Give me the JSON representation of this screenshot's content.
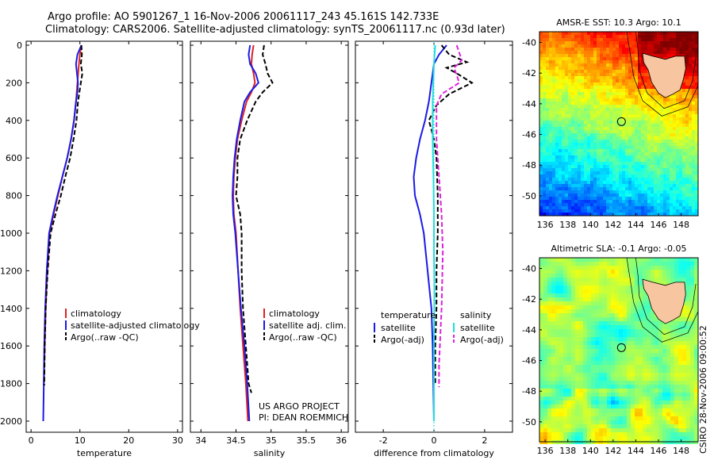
{
  "figure": {
    "title_line1": "Argo profile: AO 5901267_1 16-Nov-2006 20061117_243 45.161S 142.733E",
    "title_line2": "Climatology: CARS2006. Satellite-adjusted climatology: synTS_20061117.nc (0.93d later)",
    "credit_line1": "US ARGO PROJECT",
    "credit_line2": "PI: DEAN ROEMMICH",
    "timestamp": "CSIRO 28-Nov-2006 09:00:52"
  },
  "colors": {
    "climatology": "#dd2222",
    "satellite": "#1a1ae6",
    "argo": "#000000",
    "satellite_salinity": "#22dddd",
    "argo_adj_salinity": "#dd22dd",
    "land": "#f7c6a0"
  },
  "chart_data": [
    {
      "type": "line",
      "name": "temperature-profile",
      "xlabel": "temperature",
      "ylabel": "",
      "xlim": [
        -1,
        31
      ],
      "ylim": [
        2050,
        0
      ],
      "xticks": [
        "0",
        "10",
        "20",
        "30"
      ],
      "yticks": [
        "0",
        "200",
        "400",
        "600",
        "800",
        "1000",
        "1200",
        "1400",
        "1600",
        "1800",
        "2000"
      ],
      "legend": [
        "climatology",
        "satellite-adjusted climatology",
        "Argo(..raw -QC)"
      ],
      "series": [
        {
          "name": "climatology",
          "color_key": "climatology",
          "dash": false,
          "x": [
            10.3,
            10.0,
            9.8,
            9.5,
            9.2,
            8.8,
            8.2,
            7.4,
            6.4,
            5.5,
            4.6,
            3.8,
            3.3,
            3.0,
            2.8,
            2.7,
            2.6
          ],
          "y": [
            0,
            50,
            100,
            200,
            300,
            400,
            500,
            600,
            700,
            800,
            900,
            1000,
            1200,
            1400,
            1600,
            1700,
            1810
          ]
        },
        {
          "name": "satellite-adjusted climatology",
          "color_key": "satellite",
          "dash": false,
          "x": [
            10.3,
            9.5,
            9.2,
            9.4,
            9.6,
            9.5,
            9.2,
            8.8,
            8.2,
            7.4,
            6.4,
            5.4,
            4.5,
            3.7,
            3.2,
            2.9,
            2.7,
            2.6,
            2.5
          ],
          "y": [
            0,
            50,
            100,
            150,
            200,
            250,
            300,
            400,
            500,
            600,
            700,
            800,
            900,
            1000,
            1200,
            1400,
            1600,
            1800,
            2000
          ]
        },
        {
          "name": "Argo(..raw -QC)",
          "color_key": "argo",
          "dash": true,
          "x": [
            10.3,
            10.4,
            10.2,
            10.5,
            10.2,
            9.9,
            9.6,
            9.3,
            8.7,
            8.0,
            7.0,
            6.1,
            5.0,
            4.0,
            3.4,
            3.0,
            2.8,
            2.7
          ],
          "y": [
            0,
            50,
            100,
            150,
            200,
            250,
            300,
            400,
            500,
            600,
            700,
            800,
            900,
            1000,
            1200,
            1400,
            1600,
            1810
          ]
        }
      ]
    },
    {
      "type": "line",
      "name": "salinity-profile",
      "xlabel": "salinity",
      "ylabel": "",
      "xlim": [
        33.85,
        36.1
      ],
      "ylim": [
        2050,
        0
      ],
      "xticks": [
        "34",
        "34.5",
        "35",
        "35.5",
        "36"
      ],
      "legend": [
        "climatology",
        "satellite adj. clim.",
        "Argo(..raw -QC)"
      ],
      "series": [
        {
          "name": "climatology",
          "color_key": "climatology",
          "dash": false,
          "x": [
            34.75,
            34.73,
            34.72,
            34.75,
            34.77,
            34.72,
            34.65,
            34.58,
            34.52,
            34.49,
            34.47,
            34.46,
            34.47,
            34.5,
            34.53,
            34.56,
            34.6,
            34.64,
            34.67
          ],
          "y": [
            0,
            50,
            100,
            150,
            200,
            250,
            300,
            400,
            500,
            600,
            700,
            800,
            900,
            1000,
            1200,
            1400,
            1600,
            1800,
            2000
          ]
        },
        {
          "name": "satellite adj. clim.",
          "color_key": "satellite",
          "dash": false,
          "x": [
            34.7,
            34.68,
            34.7,
            34.78,
            34.82,
            34.7,
            34.62,
            34.56,
            34.51,
            34.48,
            34.46,
            34.45,
            34.46,
            34.49,
            34.53,
            34.57,
            34.62,
            34.66,
            34.69
          ],
          "y": [
            0,
            50,
            100,
            150,
            200,
            250,
            300,
            400,
            500,
            600,
            700,
            800,
            900,
            1000,
            1200,
            1400,
            1600,
            1800,
            2000
          ]
        },
        {
          "name": "Argo(..raw -QC)",
          "color_key": "argo",
          "dash": true,
          "x": [
            34.9,
            34.88,
            34.92,
            34.95,
            35.02,
            34.88,
            34.78,
            34.66,
            34.56,
            34.52,
            34.52,
            34.5,
            34.56,
            34.58,
            34.58,
            34.6,
            34.64,
            34.68,
            34.72
          ],
          "y": [
            0,
            50,
            100,
            150,
            200,
            250,
            300,
            400,
            500,
            600,
            700,
            800,
            900,
            1000,
            1200,
            1400,
            1600,
            1800,
            1850
          ]
        }
      ]
    },
    {
      "type": "line",
      "name": "difference-profile",
      "xlabel": "difference from climatology",
      "ylabel": "",
      "xlim": [
        -3.1,
        3.1
      ],
      "ylim": [
        2050,
        0
      ],
      "xticks": [
        "-2",
        "0",
        "2"
      ],
      "legend_groups": [
        {
          "title": "temperature",
          "entries": [
            "satellite",
            "Argo(-adj)"
          ]
        },
        {
          "title": "salinity",
          "entries": [
            "satellite",
            "Argo(-adj)"
          ]
        }
      ],
      "series": [
        {
          "name": "temperature satellite",
          "color_key": "satellite",
          "dash": false,
          "x": [
            0.5,
            0.2,
            0.0,
            -0.1,
            -0.2,
            -0.35,
            -0.55,
            -0.7,
            -0.8,
            -0.75,
            -0.55,
            -0.4,
            -0.25,
            -0.1,
            -0.05,
            0.0
          ],
          "y": [
            0,
            50,
            100,
            200,
            300,
            400,
            500,
            600,
            700,
            800,
            900,
            1000,
            1200,
            1400,
            1600,
            2000
          ]
        },
        {
          "name": "temperature Argo(-adj)",
          "color_key": "argo",
          "dash": true,
          "x": [
            0.3,
            0.6,
            1.3,
            0.5,
            0.9,
            1.5,
            0.6,
            0.1,
            -0.2,
            0.0,
            0.1,
            0.15,
            0.15,
            0.1,
            0.1,
            0.05,
            0.05
          ],
          "y": [
            0,
            50,
            90,
            120,
            150,
            200,
            260,
            320,
            400,
            500,
            600,
            800,
            1000,
            1200,
            1400,
            1600,
            1800
          ]
        },
        {
          "name": "salinity satellite",
          "color_key": "satellite_salinity",
          "dash": false,
          "x": [
            0.05,
            0.0,
            -0.05,
            -0.05,
            -0.02,
            0.0,
            0.0,
            0.02,
            0.0,
            0.0
          ],
          "y": [
            0,
            100,
            300,
            500,
            700,
            900,
            1100,
            1300,
            1600,
            2000
          ]
        },
        {
          "name": "salinity Argo(-adj)",
          "color_key": "argo_adj_salinity",
          "dash": true,
          "x": [
            0.9,
            1.1,
            0.8,
            1.0,
            0.3,
            0.1,
            0.1,
            0.3,
            0.35,
            0.3,
            0.2,
            0.2
          ],
          "y": [
            0,
            80,
            120,
            200,
            260,
            320,
            500,
            900,
            1100,
            1400,
            1700,
            1820
          ]
        }
      ]
    },
    {
      "type": "heatmap",
      "name": "amsre-sst-map",
      "title": "AMSR-E SST: 10.3 Argo: 10.1",
      "xlim": [
        135.5,
        149.5
      ],
      "ylim": [
        -51.3,
        -39.3
      ],
      "xticks": [
        "136",
        "138",
        "140",
        "142",
        "144",
        "146",
        "148"
      ],
      "yticks": [
        "-40",
        "-42",
        "-44",
        "-46",
        "-48",
        "-50"
      ],
      "argo_position": {
        "lon": 142.733,
        "lat": -45.161
      }
    },
    {
      "type": "heatmap",
      "name": "altimetric-sla-map",
      "title": "Altimetric SLA: -0.1 Argo: -0.05",
      "xlim": [
        135.5,
        149.5
      ],
      "ylim": [
        -51.3,
        -39.3
      ],
      "xticks": [
        "136",
        "138",
        "140",
        "142",
        "144",
        "146",
        "148"
      ],
      "yticks": [
        "-40",
        "-42",
        "-44",
        "-46",
        "-48",
        "-50"
      ],
      "argo_position": {
        "lon": 142.733,
        "lat": -45.161
      }
    }
  ]
}
